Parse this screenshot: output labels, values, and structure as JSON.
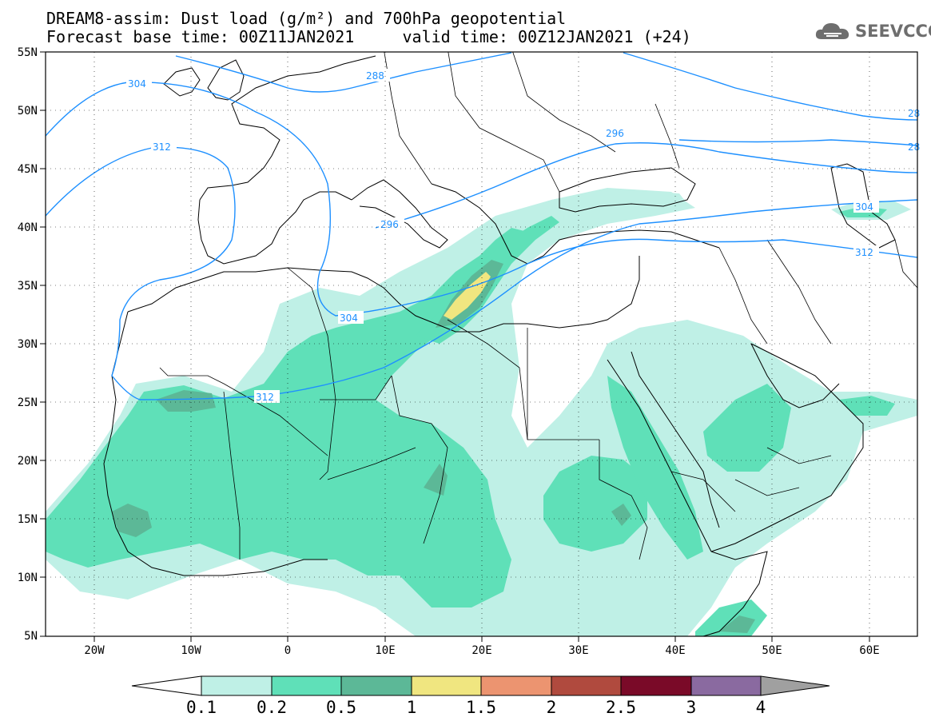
{
  "title": {
    "line1": "DREAM8-assim: Dust load (g/m²) and 700hPa geopotential",
    "line2": "Forecast base time: 00Z11JAN2021     valid time: 00Z12JAN2021 (+24)"
  },
  "logo": {
    "text": "SEEVCCC",
    "icon": "cloud-icon"
  },
  "map": {
    "lat_labels": [
      "55N",
      "50N",
      "45N",
      "40N",
      "35N",
      "30N",
      "25N",
      "20N",
      "15N",
      "10N",
      "5N"
    ],
    "lon_labels": [
      "20W",
      "10W",
      "0",
      "10E",
      "20E",
      "30E",
      "40E",
      "50E",
      "60E"
    ],
    "contour_labels": [
      "288",
      "296",
      "296",
      "304",
      "304",
      "304",
      "312",
      "312",
      "312",
      "28",
      "28"
    ]
  },
  "colorbar": {
    "labels": [
      "0.1",
      "0.2",
      "0.5",
      "1",
      "1.5",
      "2",
      "2.5",
      "3",
      "4"
    ],
    "colors": [
      "#bff0e6",
      "#5fe0b8",
      "#5cb897",
      "#f0e680",
      "#ec9470",
      "#b04a3e",
      "#7a0a28",
      "#8a6aa0"
    ],
    "under_color": "#ffffff",
    "over_color": "#a0a0a0"
  },
  "colors": {
    "contour": "#1e90ff",
    "border": "#000000",
    "dust_light": "#bff0e6",
    "dust_mid": "#5fe0b8",
    "dust_dark": "#5cb897",
    "dust_yellow": "#f0e680"
  }
}
